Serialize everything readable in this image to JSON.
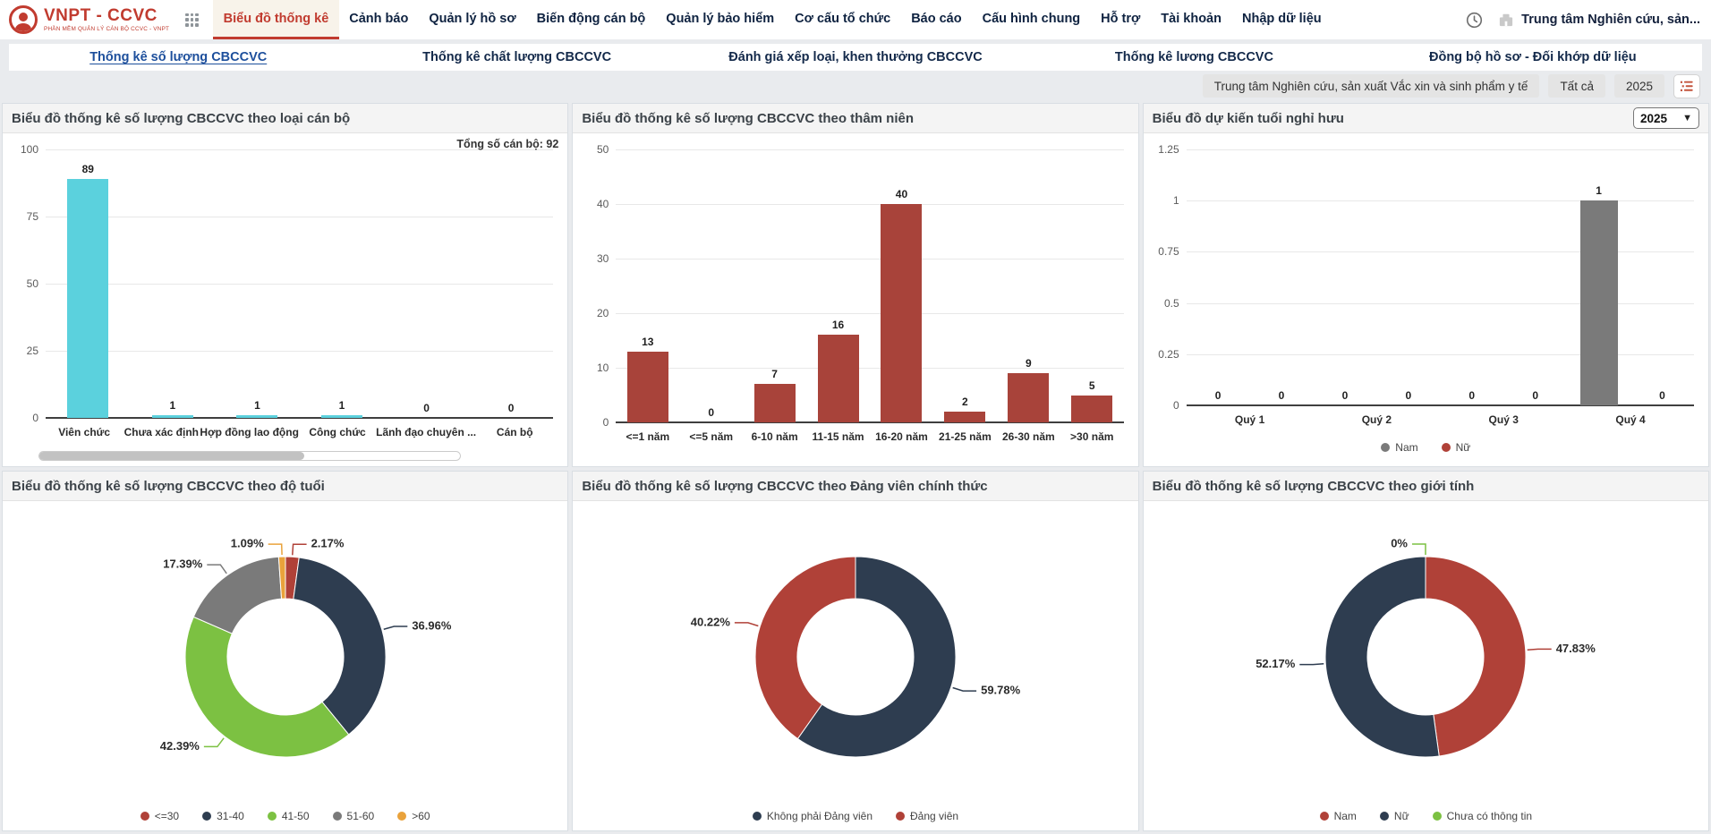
{
  "brand": {
    "name": "VNPT - CCVC",
    "tagline": "PHẦN MỀM QUẢN LÝ CÁN BỘ CCVC - VNPT"
  },
  "topnav": {
    "items": [
      {
        "label": "Biểu đồ thống kê",
        "active": true
      },
      {
        "label": "Cảnh báo",
        "active": false
      },
      {
        "label": "Quản lý hồ sơ",
        "active": false
      },
      {
        "label": "Biến động cán bộ",
        "active": false
      },
      {
        "label": "Quản lý bảo hiểm",
        "active": false
      },
      {
        "label": "Cơ cấu tổ chức",
        "active": false
      },
      {
        "label": "Báo cáo",
        "active": false
      },
      {
        "label": "Cấu hình chung",
        "active": false
      },
      {
        "label": "Hỗ trợ",
        "active": false
      },
      {
        "label": "Tài khoản",
        "active": false
      },
      {
        "label": "Nhập dữ liệu",
        "active": false
      }
    ],
    "org_label": "Trung tâm Nghiên cứu, sản..."
  },
  "subtabs": [
    {
      "label": "Thống kê số lượng CBCCVC",
      "active": true
    },
    {
      "label": "Thống kê chất lượng CBCCVC",
      "active": false
    },
    {
      "label": "Đánh giá xếp loại, khen thưởng CBCCVC",
      "active": false
    },
    {
      "label": "Thống kê lương CBCCVC",
      "active": false
    },
    {
      "label": "Đồng bộ hồ sơ - Đối khớp dữ liệu",
      "active": false
    }
  ],
  "filters": {
    "unit": "Trung tâm Nghiên cứu, sản xuất Vắc xin và sinh phẩm y tế",
    "scope": "Tất cả",
    "year": "2025"
  },
  "colors": {
    "accent_red": "#C13B2F",
    "active_tab_blue": "#1D4F9C",
    "cyan": "#5BD1DD",
    "brick": "#A8433A",
    "navy": "#2E3D50",
    "green": "#7CC142",
    "gray": "#7A7A7A",
    "orange": "#E9A23B",
    "page_bg": "#E9EBEE"
  },
  "chart_data": [
    {
      "type": "bar",
      "title": "Biểu đồ thống kê số lượng CBCCVC theo loại cán bộ",
      "total_label": "Tổng số cán bộ: 92",
      "categories": [
        "Viên chức",
        "Chưa xác định",
        "Hợp đồng lao động",
        "Công chức",
        "Lãnh đạo chuyên ...",
        "Cán bộ"
      ],
      "values": [
        89,
        1,
        1,
        1,
        0,
        0
      ],
      "bar_color": "#5BD1DD",
      "ylim": [
        0,
        100
      ],
      "yticks": [
        0,
        25,
        50,
        75,
        100
      ],
      "scrollbar": true
    },
    {
      "type": "bar",
      "title": "Biểu đồ thống kê số lượng CBCCVC theo thâm niên",
      "categories": [
        "<=1 năm",
        "<=5 năm",
        "6-10 năm",
        "11-15 năm",
        "16-20 năm",
        "21-25 năm",
        "26-30 năm",
        ">30 năm"
      ],
      "values": [
        13,
        0,
        7,
        16,
        40,
        2,
        9,
        5
      ],
      "bar_color": "#A8433A",
      "ylim": [
        0,
        50
      ],
      "yticks": [
        0,
        10,
        20,
        30,
        40,
        50
      ]
    },
    {
      "type": "bar",
      "title": "Biểu đồ dự kiến tuổi nghỉ hưu",
      "year_select": "2025",
      "categories": [
        "Quý 1",
        "Quý 2",
        "Quý 3",
        "Quý 4"
      ],
      "series": [
        {
          "name": "Nam",
          "color": "#7A7A7A",
          "values": [
            0,
            0,
            0,
            1
          ]
        },
        {
          "name": "Nữ",
          "color": "#B04138",
          "values": [
            0,
            0,
            0,
            0
          ]
        }
      ],
      "ylim": [
        0,
        1.25
      ],
      "yticks": [
        0,
        0.25,
        0.5,
        0.75,
        1,
        1.25
      ]
    },
    {
      "type": "donut",
      "title": "Biểu đồ thống kê số lượng CBCCVC theo độ tuổi",
      "slices": [
        {
          "label": "<=30",
          "pct": 2.17,
          "pct_label": "2.17%",
          "color": "#B04138"
        },
        {
          "label": "31-40",
          "pct": 36.96,
          "pct_label": "36.96%",
          "color": "#2E3D50"
        },
        {
          "label": "41-50",
          "pct": 42.39,
          "pct_label": "42.39%",
          "color": "#7CC142"
        },
        {
          "label": "51-60",
          "pct": 17.39,
          "pct_label": "17.39%",
          "color": "#7A7A7A"
        },
        {
          "label": ">60",
          "pct": 1.09,
          "pct_label": "1.09%",
          "color": "#E9A23B"
        }
      ]
    },
    {
      "type": "donut",
      "title": "Biểu đồ thống kê số lượng CBCCVC theo Đảng viên chính thức",
      "slices": [
        {
          "label": "Không phải Đảng viên",
          "pct": 59.78,
          "pct_label": "59.78%",
          "color": "#2E3D50"
        },
        {
          "label": "Đảng viên",
          "pct": 40.22,
          "pct_label": "40.22%",
          "color": "#B04138"
        }
      ]
    },
    {
      "type": "donut",
      "title": "Biểu đồ thống kê số lượng CBCCVC theo giới tính",
      "slices": [
        {
          "label": "Nam",
          "pct": 47.83,
          "pct_label": "47.83%",
          "color": "#B04138"
        },
        {
          "label": "Nữ",
          "pct": 52.17,
          "pct_label": "52.17%",
          "color": "#2E3D50"
        },
        {
          "label": "Chưa có thông tin",
          "pct": 0,
          "pct_label": "0%",
          "color": "#7CC142"
        }
      ]
    }
  ]
}
